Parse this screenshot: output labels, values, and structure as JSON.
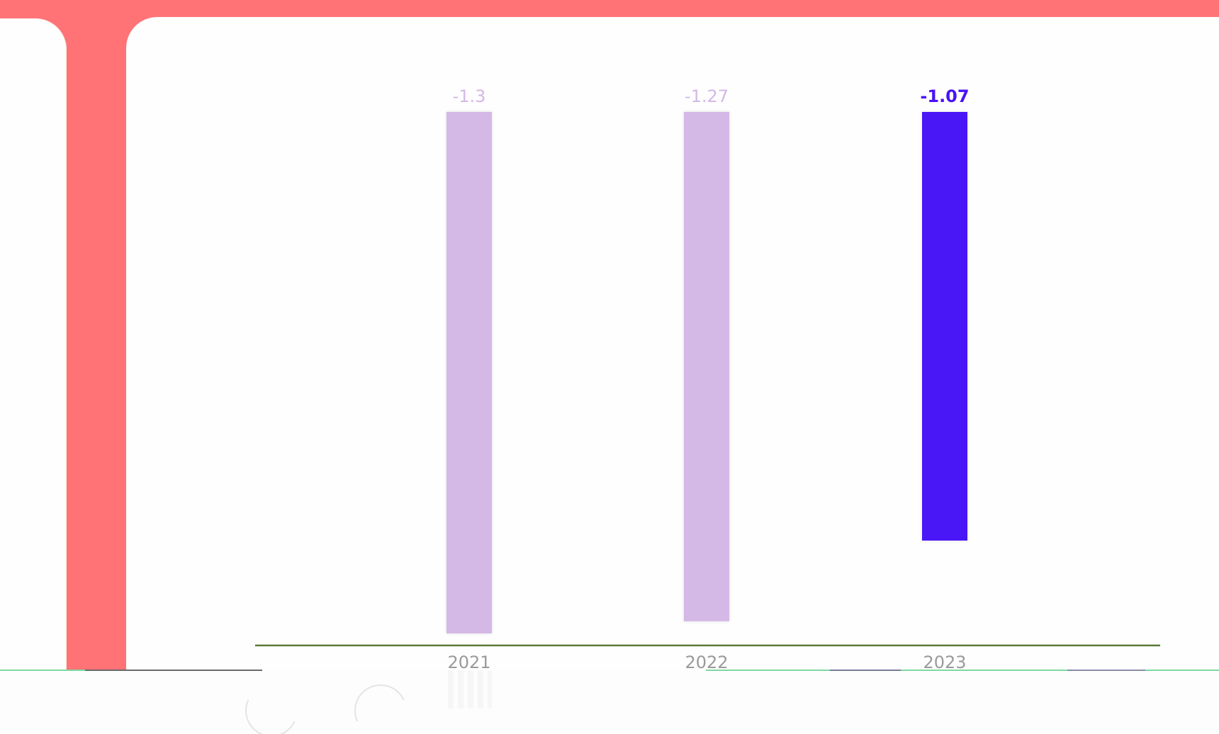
{
  "chart_data": {
    "type": "bar",
    "categories": [
      "2021",
      "2022",
      "2023"
    ],
    "values": [
      -1.3,
      -1.27,
      -1.07
    ],
    "value_labels": [
      "-1.3",
      "-1.27",
      "-1.07"
    ],
    "highlight_index": 2,
    "ylim": [
      -1.3,
      0
    ],
    "title": "",
    "xlabel": "",
    "ylabel": "",
    "grid": false,
    "legend": "none"
  },
  "colors": {
    "background": "#ff7377",
    "panel": "#fefefe",
    "bar": "#d4b8e6",
    "bar_highlight": "#4a12f5",
    "label": "#d4b8e6",
    "label_highlight": "#4a12f5",
    "axis": "#5a7a38",
    "tick_text": "#9a9a9a"
  }
}
